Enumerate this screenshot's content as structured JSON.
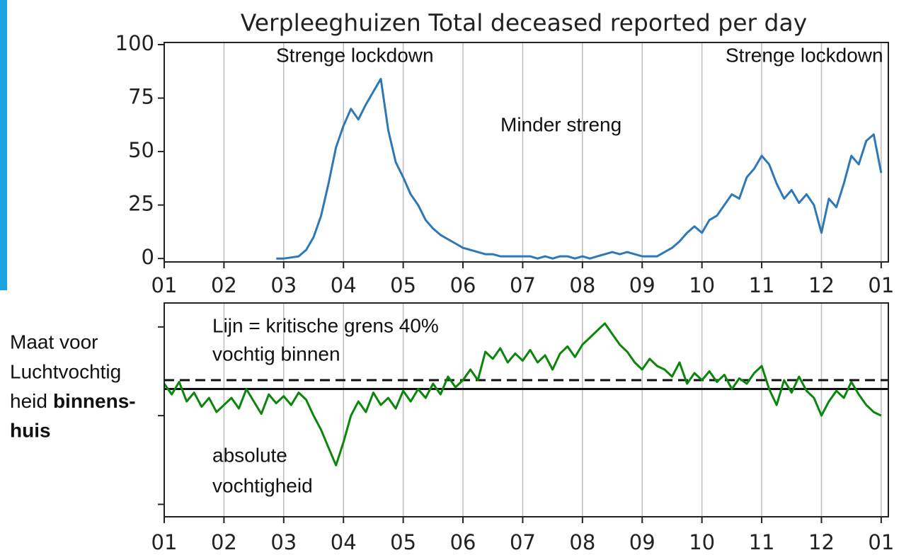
{
  "chart_data": [
    {
      "type": "line",
      "title": "Verpleeghuizen Total deceased reported per day",
      "series": [
        {
          "color": "#2f78b8",
          "x": [
            2.875,
            3.0,
            3.125,
            3.25,
            3.375,
            3.5,
            3.625,
            3.75,
            3.875,
            4.0,
            4.125,
            4.25,
            4.375,
            4.5,
            4.625,
            4.75,
            4.875,
            5.0,
            5.125,
            5.25,
            5.375,
            5.5,
            5.625,
            5.75,
            5.875,
            6.0,
            6.125,
            6.25,
            6.375,
            6.5,
            6.625,
            6.75,
            6.875,
            7.0,
            7.125,
            7.25,
            7.375,
            7.5,
            7.625,
            7.75,
            7.875,
            8.0,
            8.125,
            8.25,
            8.375,
            8.5,
            8.625,
            8.75,
            8.875,
            9.0,
            9.125,
            9.25,
            9.375,
            9.5,
            9.625,
            9.75,
            9.875,
            10.0,
            10.125,
            10.25,
            10.375,
            10.5,
            10.625,
            10.75,
            10.875,
            11.0,
            11.125,
            11.25,
            11.375,
            11.5,
            11.625,
            11.75,
            11.875,
            12.0,
            12.125,
            12.25,
            12.375,
            12.5,
            12.625,
            12.75,
            12.875,
            13.0
          ],
          "values": [
            0,
            0,
            0.5,
            1,
            4,
            10,
            20,
            35,
            52,
            62,
            70,
            65,
            72,
            78,
            84,
            60,
            45,
            38,
            30,
            25,
            18,
            14,
            11,
            9,
            7,
            5,
            4,
            3,
            2,
            2,
            1,
            1,
            1,
            1,
            1,
            0,
            1,
            0,
            1,
            1,
            0,
            1,
            0,
            1,
            2,
            3,
            2,
            3,
            2,
            1,
            1,
            1,
            3,
            5,
            8,
            12,
            15,
            12,
            18,
            20,
            25,
            30,
            28,
            38,
            42,
            48,
            44,
            35,
            28,
            32,
            26,
            30,
            25,
            12,
            28,
            24,
            35,
            48,
            44,
            55,
            58,
            40
          ]
        }
      ],
      "annotations": [
        "Strenge lockdown",
        "Minder streng",
        "Strenge lockdown"
      ],
      "xlim": [
        1,
        13.12
      ],
      "ylim": [
        -1.6,
        101
      ],
      "xticks": [
        {
          "value": 1,
          "label": "01"
        },
        {
          "value": 2,
          "label": "02"
        },
        {
          "value": 3,
          "label": "03"
        },
        {
          "value": 4,
          "label": "04"
        },
        {
          "value": 5,
          "label": "05"
        },
        {
          "value": 6,
          "label": "06"
        },
        {
          "value": 7,
          "label": "07"
        },
        {
          "value": 8,
          "label": "08"
        },
        {
          "value": 9,
          "label": "09"
        },
        {
          "value": 10,
          "label": "10"
        },
        {
          "value": 11,
          "label": "11"
        },
        {
          "value": 12,
          "label": "12"
        },
        {
          "value": 13,
          "label": "01"
        }
      ],
      "yticks": [
        0,
        25,
        50,
        75,
        100
      ],
      "grid": "x"
    },
    {
      "type": "line",
      "series": [
        {
          "color": "#0a870a",
          "x": [
            1.0,
            1.125,
            1.25,
            1.375,
            1.5,
            1.625,
            1.75,
            1.875,
            2.0,
            2.125,
            2.25,
            2.375,
            2.5,
            2.625,
            2.75,
            2.875,
            3.0,
            3.125,
            3.25,
            3.375,
            3.5,
            3.625,
            3.75,
            3.875,
            4.0,
            4.125,
            4.25,
            4.375,
            4.5,
            4.625,
            4.75,
            4.875,
            5.0,
            5.125,
            5.25,
            5.375,
            5.5,
            5.625,
            5.75,
            5.875,
            6.0,
            6.125,
            6.25,
            6.375,
            6.5,
            6.625,
            6.75,
            6.875,
            7.0,
            7.125,
            7.25,
            7.375,
            7.5,
            7.625,
            7.75,
            7.875,
            8.0,
            8.125,
            8.25,
            8.375,
            8.5,
            8.625,
            8.75,
            8.875,
            9.0,
            9.125,
            9.25,
            9.375,
            9.5,
            9.625,
            9.75,
            9.875,
            10.0,
            10.125,
            10.25,
            10.375,
            10.5,
            10.625,
            10.75,
            10.875,
            11.0,
            11.125,
            11.25,
            11.375,
            11.5,
            11.625,
            11.75,
            11.875,
            12.0,
            12.125,
            12.25,
            12.375,
            12.5,
            12.625,
            12.75,
            12.875,
            13.0
          ],
          "values": [
            6.8,
            6.2,
            6.9,
            5.8,
            6.3,
            5.5,
            6.0,
            5.2,
            5.6,
            6.0,
            5.4,
            6.5,
            5.8,
            5.1,
            6.2,
            5.7,
            6.1,
            5.6,
            6.3,
            5.9,
            5.0,
            4.2,
            3.2,
            2.2,
            3.5,
            5.0,
            5.8,
            5.2,
            6.3,
            5.6,
            6.0,
            5.4,
            6.4,
            5.8,
            6.5,
            6.0,
            6.8,
            6.2,
            7.2,
            6.6,
            7.0,
            7.6,
            7.0,
            8.6,
            8.2,
            8.8,
            8.0,
            8.5,
            8.1,
            8.7,
            8.0,
            8.4,
            7.6,
            8.5,
            8.9,
            8.3,
            9.0,
            9.4,
            9.8,
            10.2,
            9.6,
            9.0,
            8.6,
            8.0,
            7.6,
            8.2,
            7.8,
            7.6,
            7.2,
            8.0,
            6.8,
            7.4,
            7.0,
            7.5,
            6.9,
            7.3,
            6.5,
            7.1,
            6.8,
            7.4,
            7.8,
            6.5,
            5.6,
            7.0,
            6.3,
            7.2,
            6.4,
            6.0,
            5.0,
            5.8,
            6.4,
            6.0,
            6.9,
            6.2,
            5.6,
            5.2,
            5.0
          ]
        }
      ],
      "reference_lines": [
        {
          "value": 6.5,
          "style": "solid"
        },
        {
          "value": 7.0,
          "style": "dashed"
        }
      ],
      "annotations": [
        "Lijn = kritische grens 40%",
        "vochtig binnen",
        "absolute",
        "vochtigheid"
      ],
      "side_label": [
        "Maat voor",
        "Luchtvochtig",
        "heid",
        "binnens-",
        "huis"
      ],
      "xlim": [
        1,
        13.12
      ],
      "ylim": [
        -0.7,
        11.35
      ],
      "xticks": [
        {
          "value": 1,
          "label": "01"
        },
        {
          "value": 2,
          "label": "02"
        },
        {
          "value": 3,
          "label": "03"
        },
        {
          "value": 4,
          "label": "04"
        },
        {
          "value": 5,
          "label": "05"
        },
        {
          "value": 6,
          "label": "06"
        },
        {
          "value": 7,
          "label": "07"
        },
        {
          "value": 8,
          "label": "08"
        },
        {
          "value": 9,
          "label": "09"
        },
        {
          "value": 10,
          "label": "10"
        },
        {
          "value": 11,
          "label": "11"
        },
        {
          "value": 12,
          "label": "12"
        },
        {
          "value": 13,
          "label": "01"
        }
      ],
      "yticks": [
        0,
        5,
        10
      ],
      "grid": "x"
    }
  ]
}
